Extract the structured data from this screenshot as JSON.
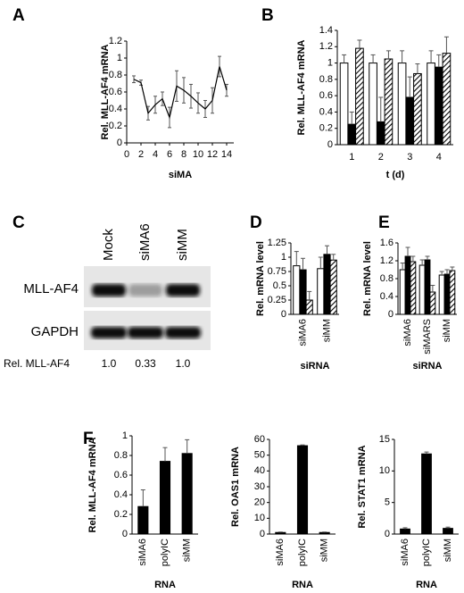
{
  "chart_data": [
    {
      "type": "line",
      "panel": "A",
      "ylabel": "Rel. MLL-AF4 mRNA",
      "xlabel": "siMA",
      "x": [
        1,
        2,
        3,
        4,
        5,
        6,
        7,
        8,
        9,
        10,
        11,
        12,
        13,
        14
      ],
      "values": [
        0.75,
        0.71,
        0.35,
        0.45,
        0.52,
        0.3,
        0.67,
        0.62,
        0.55,
        0.47,
        0.4,
        0.5,
        0.9,
        0.62
      ],
      "errors": [
        0.04,
        0.03,
        0.08,
        0.1,
        0.08,
        0.12,
        0.18,
        0.15,
        0.14,
        0.12,
        0.1,
        0.15,
        0.12,
        0.07
      ],
      "color": "#000000",
      "xlim": [
        0,
        15
      ],
      "xticks": [
        0,
        2,
        4,
        6,
        8,
        10,
        12,
        14
      ],
      "ylim": [
        0,
        1.2
      ],
      "yticks": [
        0,
        0.2,
        0.4,
        0.6,
        0.8,
        1,
        1.2
      ]
    },
    {
      "type": "bar",
      "panel": "B",
      "ylabel": "Rel. MLL-AF4 mRNA",
      "xlabel": "t (d)",
      "categories": [
        "1",
        "2",
        "3",
        "4"
      ],
      "series": [
        {
          "color": "#ffffff",
          "values": [
            1,
            1,
            1,
            1
          ],
          "errors": [
            0.1,
            0.1,
            0.15,
            0.15
          ]
        },
        {
          "color": "#000000",
          "values": [
            0.25,
            0.28,
            0.58,
            0.95
          ],
          "errors": [
            0.15,
            0.3,
            0.25,
            0.15
          ]
        },
        {
          "color": "#000000",
          "pattern": "hatch",
          "values": [
            1.18,
            1.05,
            0.87,
            1.12
          ],
          "errors": [
            0.1,
            0.1,
            0.12,
            0.2
          ]
        }
      ],
      "ylim": [
        0,
        1.4
      ],
      "yticks": [
        0,
        0.2,
        0.4,
        0.6,
        0.8,
        1,
        1.2,
        1.4
      ]
    },
    {
      "type": "blot",
      "panel": "C",
      "lanes": [
        "Mock",
        "siMA6",
        "siMM"
      ],
      "rows": [
        "MLL-AF4",
        "GAPDH"
      ],
      "value_label": "Rel. MLL-AF4",
      "values": [
        1.0,
        0.33,
        1.0
      ],
      "value_labels": [
        "1.0",
        "0.33",
        "1.0"
      ]
    },
    {
      "type": "bar",
      "panel": "D",
      "ylabel": "Rel. mRNA level",
      "xlabel": "siRNA",
      "xtick_rotation": 90,
      "categories": [
        "siMA6",
        "siMM"
      ],
      "series": [
        {
          "color": "#ffffff",
          "values": [
            0.85,
            0.8
          ],
          "errors": [
            0.25,
            0.2
          ]
        },
        {
          "color": "#000000",
          "values": [
            0.78,
            1.05
          ],
          "errors": [
            0.2,
            0.15
          ]
        },
        {
          "color": "#000000",
          "pattern": "hatch",
          "values": [
            0.25,
            0.95
          ],
          "errors": [
            0.15,
            0.1
          ]
        }
      ],
      "ylim": [
        0,
        1.25
      ],
      "yticks": [
        0,
        0.25,
        0.5,
        0.75,
        1,
        1.25
      ]
    },
    {
      "type": "bar",
      "panel": "E",
      "ylabel": "Rel. mRNA level",
      "xlabel": "siRNA",
      "xtick_rotation": 90,
      "categories": [
        "siMA6",
        "siMARS",
        "siMM"
      ],
      "series": [
        {
          "color": "#ffffff",
          "values": [
            1.0,
            1.1,
            0.88
          ],
          "errors": [
            0.15,
            0.12,
            0.08
          ]
        },
        {
          "color": "#000000",
          "values": [
            1.3,
            1.22,
            0.9
          ],
          "errors": [
            0.2,
            0.08,
            0.1
          ]
        },
        {
          "color": "#000000",
          "pattern": "hatch",
          "values": [
            1.18,
            0.5,
            0.98
          ],
          "errors": [
            0.12,
            0.15,
            0.08
          ]
        }
      ],
      "ylim": [
        0,
        1.6
      ],
      "yticks": [
        0,
        0.4,
        0.8,
        1.2,
        1.6
      ]
    },
    {
      "type": "bar",
      "panel": "F",
      "ylabel": "Rel. MLL-AF4 mRNA",
      "xlabel": "RNA",
      "xtick_rotation": 90,
      "categories": [
        "siMA6",
        "polyIC",
        "siMM"
      ],
      "series": [
        {
          "color": "#000000",
          "values": [
            0.28,
            0.74,
            0.82
          ],
          "errors": [
            0.17,
            0.14,
            0.14
          ]
        }
      ],
      "ylim": [
        0,
        1
      ],
      "yticks": [
        0,
        0.2,
        0.4,
        0.6,
        0.8,
        1
      ]
    },
    {
      "type": "bar",
      "ylabel": "Rel. OAS1 mRNA",
      "xlabel": "RNA",
      "xtick_rotation": 90,
      "categories": [
        "siMA6",
        "polyIC",
        "siMM"
      ],
      "series": [
        {
          "color": "#000000",
          "values": [
            1,
            56,
            1
          ],
          "errors": [
            0.3,
            0.5,
            0.3
          ]
        }
      ],
      "ylim": [
        0,
        60
      ],
      "yticks": [
        0,
        10,
        20,
        30,
        40,
        50,
        60
      ]
    },
    {
      "type": "bar",
      "ylabel": "Rel. STAT1 mRNA",
      "xlabel": "RNA",
      "xtick_rotation": 90,
      "categories": [
        "siMA6",
        "polyIC",
        "siMM"
      ],
      "series": [
        {
          "color": "#000000",
          "values": [
            0.8,
            12.7,
            0.9
          ],
          "errors": [
            0.2,
            0.3,
            0.2
          ]
        }
      ],
      "ylim": [
        0,
        15
      ],
      "yticks": [
        0,
        5,
        10,
        15
      ]
    }
  ]
}
